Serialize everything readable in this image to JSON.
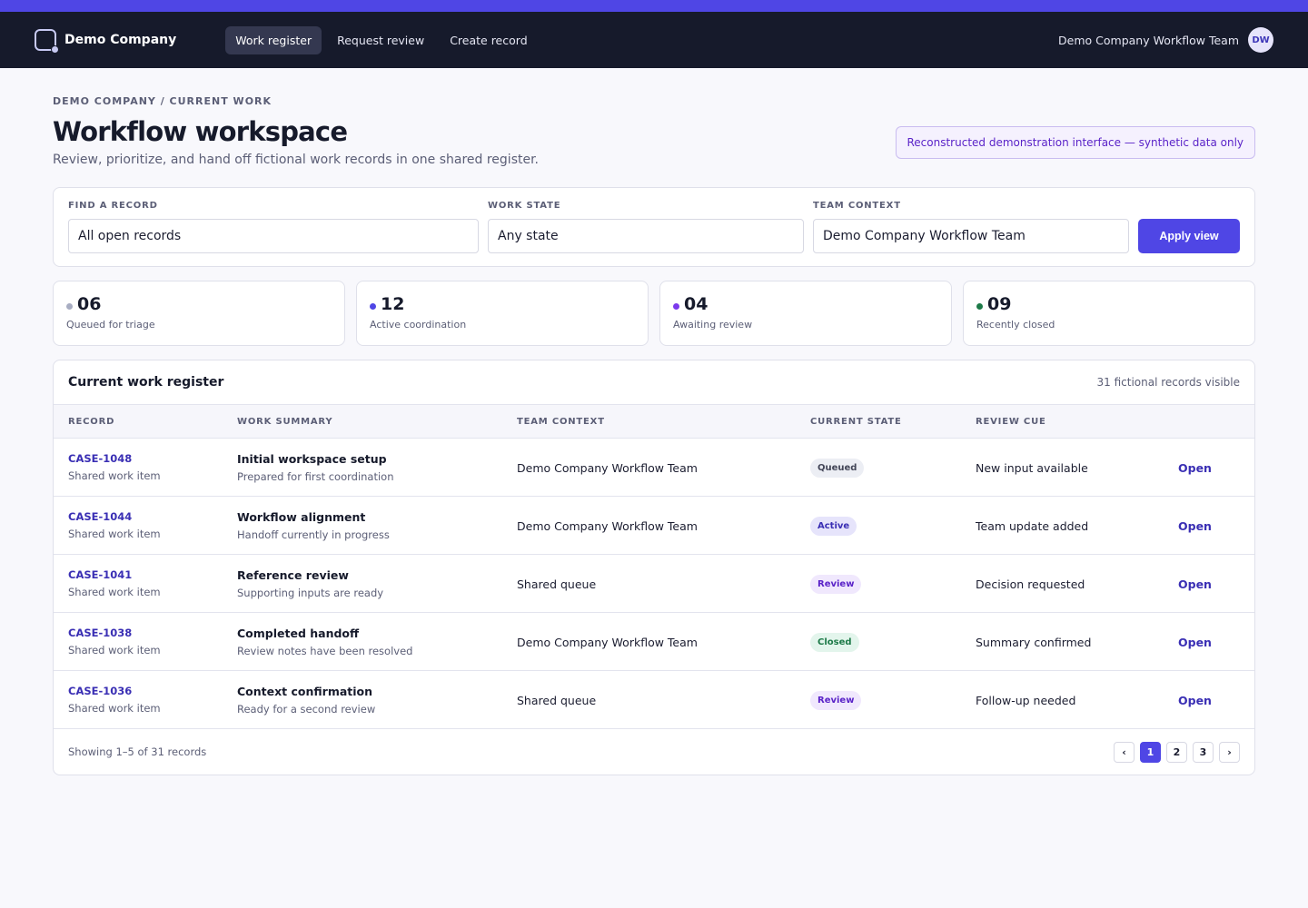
{
  "colors": {
    "accent": "#4f46e5",
    "nav_bg": "#161a2b"
  },
  "brand": {
    "name": "Demo Company",
    "logo_icon": "workspace-square-icon"
  },
  "nav": [
    {
      "label": "Work register",
      "active": true
    },
    {
      "label": "Request review",
      "active": false
    },
    {
      "label": "Create record",
      "active": false
    }
  ],
  "user": {
    "team": "Demo Company Workflow Team",
    "initials": "DW"
  },
  "breadcrumb": "DEMO COMPANY / CURRENT WORK",
  "header": {
    "title": "Workflow workspace",
    "subtitle": "Review, prioritize, and hand off fictional work records in one shared register.",
    "badge": "Reconstructed demonstration interface — synthetic data only"
  },
  "filters": {
    "find": {
      "label": "FIND A RECORD",
      "value": "All open records"
    },
    "state": {
      "label": "WORK STATE",
      "value": "Any state"
    },
    "team": {
      "label": "TEAM CONTEXT",
      "value": "Demo Company Workflow Team"
    },
    "apply_label": "Apply view"
  },
  "stats": [
    {
      "value": "06",
      "label": "Queued for triage",
      "color": "#a8adc2"
    },
    {
      "value": "12",
      "label": "Active coordination",
      "color": "#4f46e5"
    },
    {
      "value": "04",
      "label": "Awaiting review",
      "color": "#7c3aed"
    },
    {
      "value": "09",
      "label": "Recently closed",
      "color": "#1d7a48"
    }
  ],
  "table": {
    "title": "Current work register",
    "meta": "31 fictional records visible",
    "columns": [
      "RECORD",
      "WORK SUMMARY",
      "TEAM CONTEXT",
      "CURRENT STATE",
      "REVIEW CUE"
    ],
    "rows": [
      {
        "id": "CASE-1048",
        "type": "Shared work item",
        "title": "Initial workspace setup",
        "sub": "Prepared for first coordination",
        "team": "Demo Company Workflow Team",
        "state": "Queued",
        "state_kind": "queued",
        "cue": "New input available",
        "action": "Open"
      },
      {
        "id": "CASE-1044",
        "type": "Shared work item",
        "title": "Workflow alignment",
        "sub": "Handoff currently in progress",
        "team": "Demo Company Workflow Team",
        "state": "Active",
        "state_kind": "active",
        "cue": "Team update added",
        "action": "Open"
      },
      {
        "id": "CASE-1041",
        "type": "Shared work item",
        "title": "Reference review",
        "sub": "Supporting inputs are ready",
        "team": "Shared queue",
        "state": "Review",
        "state_kind": "review",
        "cue": "Decision requested",
        "action": "Open"
      },
      {
        "id": "CASE-1038",
        "type": "Shared work item",
        "title": "Completed handoff",
        "sub": "Review notes have been resolved",
        "team": "Demo Company Workflow Team",
        "state": "Closed",
        "state_kind": "closed",
        "cue": "Summary confirmed",
        "action": "Open"
      },
      {
        "id": "CASE-1036",
        "type": "Shared work item",
        "title": "Context confirmation",
        "sub": "Ready for a second review",
        "team": "Shared queue",
        "state": "Review",
        "state_kind": "review",
        "cue": "Follow-up needed",
        "action": "Open"
      }
    ],
    "footer": "Showing 1–5 of 31 records",
    "pagination": {
      "prev": "‹",
      "pages": [
        "1",
        "2",
        "3"
      ],
      "current": "1",
      "next": "›"
    }
  }
}
